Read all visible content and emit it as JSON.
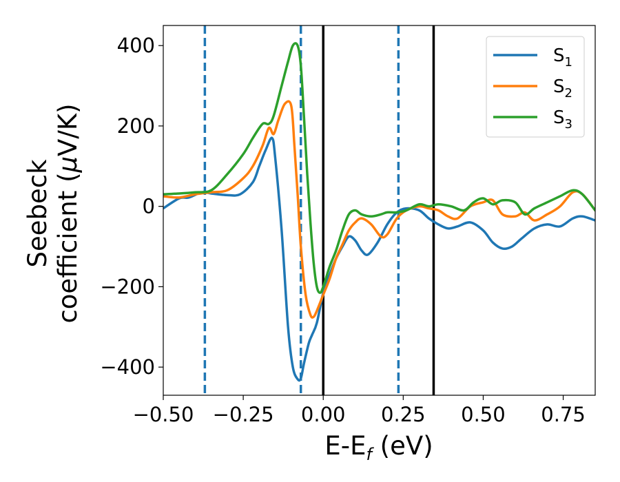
{
  "chart_data": {
    "type": "line",
    "xlabel": {
      "main": "E-E",
      "sub": "f",
      "rest": " (eV)"
    },
    "ylabel": {
      "line1": "Seebeck",
      "line2_pre": "coefficient  (",
      "mu": "μ",
      "line2_post": "V/K)"
    },
    "xlim": [
      -0.5,
      0.85
    ],
    "ylim": [
      -470,
      450
    ],
    "xticks": [
      {
        "v": -0.5,
        "label": "−0.50"
      },
      {
        "v": -0.25,
        "label": "−0.25"
      },
      {
        "v": 0.0,
        "label": "0.00"
      },
      {
        "v": 0.25,
        "label": "0.25"
      },
      {
        "v": 0.5,
        "label": "0.50"
      },
      {
        "v": 0.75,
        "label": "0.75"
      }
    ],
    "yticks": [
      {
        "v": -400,
        "label": "−400"
      },
      {
        "v": -200,
        "label": "−200"
      },
      {
        "v": 0,
        "label": "0"
      },
      {
        "v": 200,
        "label": "200"
      },
      {
        "v": 400,
        "label": "400"
      }
    ],
    "vlines": [
      {
        "x": -0.37,
        "style": "dashed",
        "color": "#1f77b4"
      },
      {
        "x": -0.07,
        "style": "dashed",
        "color": "#1f77b4"
      },
      {
        "x": 0.0,
        "style": "solid",
        "color": "#000000"
      },
      {
        "x": 0.235,
        "style": "dashed",
        "color": "#1f77b4"
      },
      {
        "x": 0.345,
        "style": "solid",
        "color": "#000000"
      }
    ],
    "legend": {
      "position": "top-right"
    },
    "series": [
      {
        "name": "S",
        "sub": "1",
        "color": "#1f77b4",
        "x": [
          -0.5,
          -0.45,
          -0.42,
          -0.38,
          -0.35,
          -0.3,
          -0.26,
          -0.22,
          -0.2,
          -0.18,
          -0.16,
          -0.15,
          -0.13,
          -0.11,
          -0.095,
          -0.08,
          -0.07,
          -0.06,
          -0.045,
          -0.035,
          -0.02,
          0.0,
          0.02,
          0.04,
          0.06,
          0.08,
          0.1,
          0.12,
          0.14,
          0.17,
          0.2,
          0.23,
          0.26,
          0.3,
          0.33,
          0.36,
          0.39,
          0.42,
          0.46,
          0.5,
          0.53,
          0.56,
          0.59,
          0.62,
          0.66,
          0.7,
          0.74,
          0.78,
          0.81,
          0.85
        ],
        "y": [
          -5,
          20,
          22,
          35,
          32,
          28,
          30,
          60,
          100,
          140,
          170,
          120,
          -60,
          -300,
          -400,
          -430,
          -428,
          -390,
          -340,
          -320,
          -290,
          -215,
          -170,
          -130,
          -100,
          -75,
          -85,
          -110,
          -120,
          -90,
          -45,
          -15,
          -5,
          -10,
          -30,
          -45,
          -55,
          -50,
          -40,
          -60,
          -90,
          -105,
          -100,
          -80,
          -55,
          -45,
          -50,
          -30,
          -25,
          -35
        ]
      },
      {
        "name": "S",
        "sub": "2",
        "color": "#ff7f0e",
        "x": [
          -0.5,
          -0.45,
          -0.4,
          -0.35,
          -0.3,
          -0.25,
          -0.22,
          -0.19,
          -0.17,
          -0.155,
          -0.14,
          -0.12,
          -0.1,
          -0.09,
          -0.08,
          -0.07,
          -0.055,
          -0.04,
          -0.03,
          -0.02,
          0.0,
          0.02,
          0.04,
          0.06,
          0.08,
          0.1,
          0.12,
          0.15,
          0.18,
          0.2,
          0.23,
          0.26,
          0.3,
          0.33,
          0.36,
          0.39,
          0.42,
          0.46,
          0.5,
          0.53,
          0.56,
          0.6,
          0.63,
          0.66,
          0.7,
          0.74,
          0.78,
          0.81,
          0.85
        ],
        "y": [
          25,
          22,
          30,
          35,
          40,
          70,
          100,
          150,
          195,
          180,
          215,
          255,
          250,
          150,
          30,
          -100,
          -220,
          -270,
          -275,
          -260,
          -220,
          -180,
          -130,
          -95,
          -60,
          -40,
          -30,
          -45,
          -75,
          -70,
          -30,
          -10,
          0,
          -5,
          -10,
          -25,
          -30,
          0,
          10,
          15,
          -20,
          -25,
          -15,
          -35,
          -20,
          0,
          35,
          30,
          -10
        ]
      },
      {
        "name": "S",
        "sub": "3",
        "color": "#2ca02c",
        "x": [
          -0.5,
          -0.45,
          -0.4,
          -0.35,
          -0.3,
          -0.25,
          -0.22,
          -0.19,
          -0.17,
          -0.155,
          -0.13,
          -0.11,
          -0.095,
          -0.08,
          -0.07,
          -0.06,
          -0.05,
          -0.04,
          -0.03,
          -0.02,
          -0.01,
          0.0,
          0.02,
          0.04,
          0.06,
          0.08,
          0.1,
          0.12,
          0.15,
          0.18,
          0.2,
          0.23,
          0.26,
          0.3,
          0.33,
          0.36,
          0.4,
          0.44,
          0.47,
          0.5,
          0.53,
          0.56,
          0.6,
          0.63,
          0.66,
          0.7,
          0.74,
          0.78,
          0.81,
          0.85
        ],
        "y": [
          30,
          32,
          35,
          40,
          80,
          130,
          170,
          205,
          205,
          225,
          300,
          360,
          400,
          400,
          350,
          220,
          80,
          -40,
          -140,
          -200,
          -215,
          -200,
          -150,
          -110,
          -60,
          -20,
          -10,
          -20,
          -25,
          -20,
          -15,
          -15,
          -10,
          5,
          0,
          5,
          0,
          -10,
          10,
          20,
          5,
          15,
          10,
          -20,
          -5,
          10,
          25,
          40,
          30,
          -10
        ]
      }
    ]
  }
}
